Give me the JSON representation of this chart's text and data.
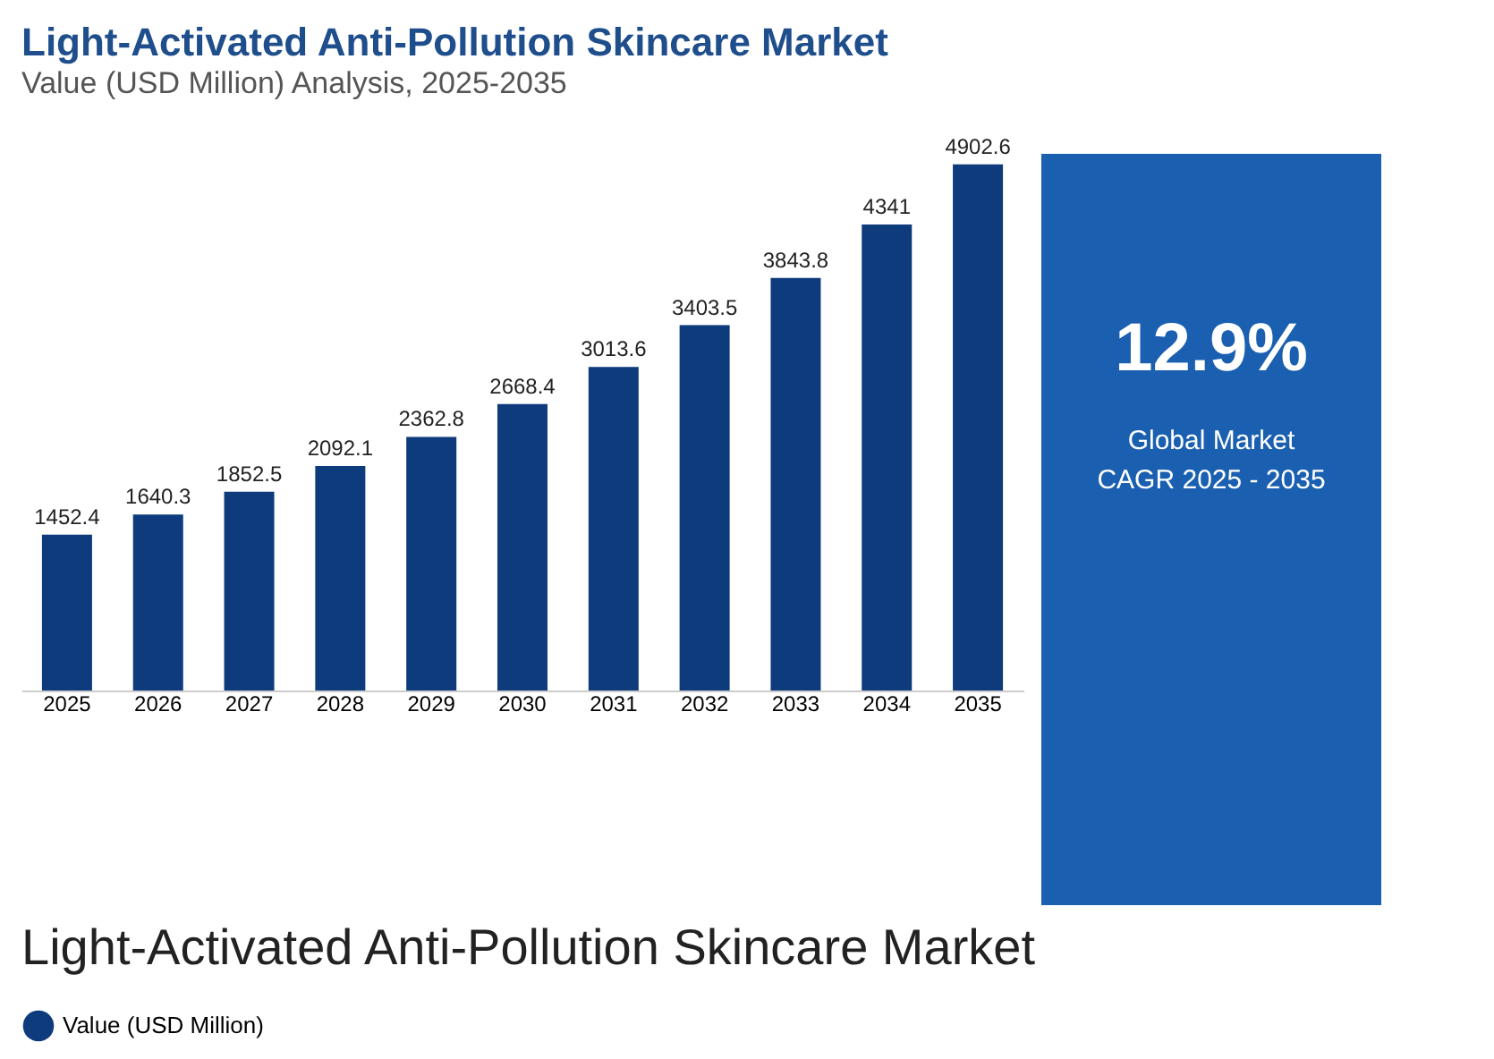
{
  "chart_data": {
    "type": "bar",
    "title": "Light-Activated Anti-Pollution Skincare Market",
    "subtitle": "Value (USD Million) Analysis, 2025-2035",
    "categories": [
      "2025",
      "2026",
      "2027",
      "2028",
      "2029",
      "2030",
      "2031",
      "2032",
      "2033",
      "2034",
      "2035"
    ],
    "series": [
      {
        "name": "Value (USD Million)",
        "color": "#0d3b7c",
        "values": [
          1452.4,
          1640.3,
          1852.5,
          2092.1,
          2362.8,
          2668.4,
          3013.6,
          3403.5,
          3843.8,
          4341,
          4902.6
        ]
      }
    ],
    "data_labels": true,
    "legend": "bottom",
    "grid": false,
    "annotations": [
      "12.9%",
      "Global Market",
      "CAGR 2025 - 2035",
      "Light-Activated Anti-Pollution Skincare Market"
    ]
  }
}
